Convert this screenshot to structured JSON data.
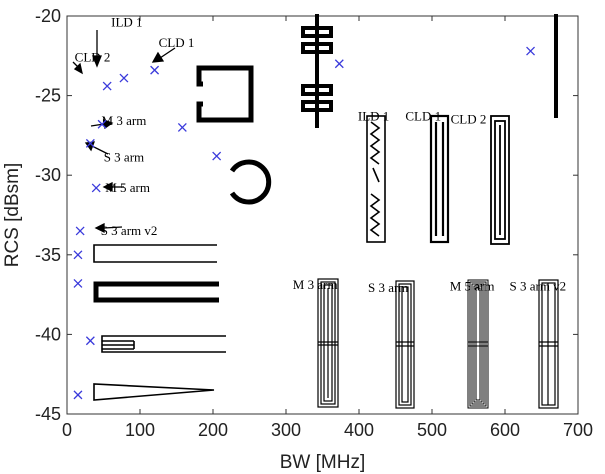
{
  "chart_data": {
    "type": "scatter",
    "xlabel": "BW [MHz]",
    "ylabel": "RCS [dBsm]",
    "xlim": [
      0,
      700
    ],
    "ylim": [
      -45,
      -20
    ],
    "xticks": [
      "0",
      "100",
      "200",
      "300",
      "400",
      "500",
      "600",
      "700"
    ],
    "yticks": [
      "-20",
      "-25",
      "-30",
      "-35",
      "-40",
      "-45"
    ],
    "grid": false,
    "marker_color": "#3a3adb",
    "points": [
      {
        "x": 635,
        "y": -22.2
      },
      {
        "x": 373,
        "y": -23.0
      },
      {
        "x": 78,
        "y": -23.9
      },
      {
        "x": 120,
        "y": -23.4
      },
      {
        "x": 55,
        "y": -24.4
      },
      {
        "x": 158,
        "y": -27.0
      },
      {
        "x": 48,
        "y": -26.8
      },
      {
        "x": 32,
        "y": -28.0
      },
      {
        "x": 205,
        "y": -28.8
      },
      {
        "x": 40,
        "y": -30.8
      },
      {
        "x": 18,
        "y": -33.5
      },
      {
        "x": 15,
        "y": -35.0
      },
      {
        "x": 15,
        "y": -36.8
      },
      {
        "x": 32,
        "y": -40.4
      },
      {
        "x": 15,
        "y": -43.8
      }
    ],
    "annotations": [
      {
        "text": "ILD 1",
        "x": 82,
        "y": -20.4
      },
      {
        "text": "CLD 1",
        "x": 150,
        "y": -21.7
      },
      {
        "text": "CLD 2",
        "x": 35,
        "y": -22.6
      },
      {
        "text": "M 3 arm",
        "x": 78,
        "y": -26.6
      },
      {
        "text": "S 3 arm",
        "x": 78,
        "y": -28.9
      },
      {
        "text": "M 5 arm",
        "x": 83,
        "y": -30.8
      },
      {
        "text": "S 3 arm v2",
        "x": 85,
        "y": -33.5
      },
      {
        "text": "ILD 1",
        "x": 420,
        "y": -26.3
      },
      {
        "text": "CLD 1",
        "x": 488,
        "y": -26.3
      },
      {
        "text": "CLD 2",
        "x": 550,
        "y": -26.5
      },
      {
        "text": "M 3 arm",
        "x": 340,
        "y": -36.9
      },
      {
        "text": "S 3 arm",
        "x": 440,
        "y": -37.1
      },
      {
        "text": "M 5 arm",
        "x": 555,
        "y": -37.0
      },
      {
        "text": "S 3 arm v2",
        "x": 645,
        "y": -37.0
      }
    ]
  }
}
